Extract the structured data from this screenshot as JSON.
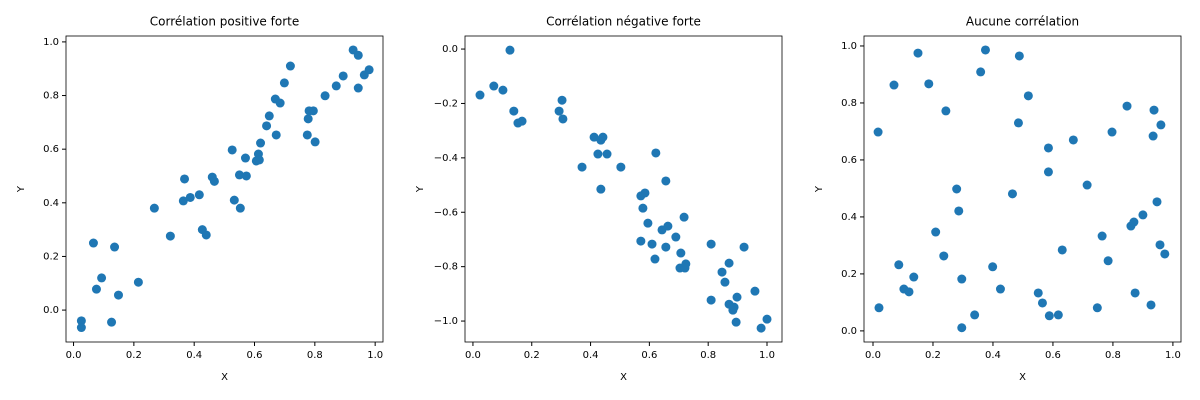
{
  "chart_data": [
    {
      "type": "scatter",
      "title": "Corrélation positive forte",
      "xlabel": "X",
      "ylabel": "Y",
      "color": "#1f77b4",
      "x": [
        0.026,
        0.026,
        0.066,
        0.076,
        0.093,
        0.126,
        0.136,
        0.149,
        0.215,
        0.268,
        0.321,
        0.364,
        0.368,
        0.387,
        0.417,
        0.427,
        0.44,
        0.46,
        0.467,
        0.526,
        0.533,
        0.55,
        0.553,
        0.57,
        0.573,
        0.606,
        0.613,
        0.616,
        0.62,
        0.64,
        0.649,
        0.669,
        0.672,
        0.685,
        0.699,
        0.719,
        0.775,
        0.778,
        0.781,
        0.795,
        0.801,
        0.834,
        0.871,
        0.894,
        0.927,
        0.944,
        0.944,
        0.964,
        0.98
      ],
      "values": [
        -0.04,
        -0.065,
        0.25,
        0.078,
        0.12,
        -0.045,
        0.235,
        0.056,
        0.104,
        0.38,
        0.276,
        0.407,
        0.489,
        0.42,
        0.43,
        0.3,
        0.28,
        0.496,
        0.48,
        0.597,
        0.41,
        0.504,
        0.38,
        0.567,
        0.5,
        0.556,
        0.582,
        0.56,
        0.623,
        0.687,
        0.724,
        0.787,
        0.653,
        0.772,
        0.847,
        0.91,
        0.653,
        0.713,
        0.743,
        0.743,
        0.627,
        0.799,
        0.836,
        0.873,
        0.97,
        0.95,
        0.828,
        0.877,
        0.896
      ],
      "xlim": [
        -0.025,
        1.026
      ],
      "ylim": [
        -0.119,
        1.022
      ],
      "xticks": [
        {
          "value": 0,
          "label": "0.0"
        },
        {
          "value": 0.2,
          "label": "0.2"
        },
        {
          "value": 0.4,
          "label": "0.4"
        },
        {
          "value": 0.6,
          "label": "0.6"
        },
        {
          "value": 0.8,
          "label": "0.8"
        },
        {
          "value": 1,
          "label": "1.0"
        }
      ],
      "yticks": [
        {
          "value": 0,
          "label": "0.0"
        },
        {
          "value": 0.2,
          "label": "0.2"
        },
        {
          "value": 0.4,
          "label": "0.4"
        },
        {
          "value": 0.6,
          "label": "0.6"
        },
        {
          "value": 0.8,
          "label": "0.8"
        },
        {
          "value": 1,
          "label": "1.0"
        }
      ]
    },
    {
      "type": "scatter",
      "title": "Corrélation négative forte",
      "xlabel": "X",
      "ylabel": "Y",
      "color": "#1f77b4",
      "x": [
        0.024,
        0.071,
        0.102,
        0.126,
        0.139,
        0.153,
        0.167,
        0.293,
        0.303,
        0.306,
        0.371,
        0.412,
        0.425,
        0.435,
        0.442,
        0.435,
        0.456,
        0.503,
        0.571,
        0.578,
        0.585,
        0.571,
        0.595,
        0.609,
        0.619,
        0.622,
        0.643,
        0.656,
        0.656,
        0.663,
        0.69,
        0.704,
        0.707,
        0.718,
        0.721,
        0.724,
        0.81,
        0.81,
        0.847,
        0.857,
        0.871,
        0.871,
        0.884,
        0.888,
        0.895,
        0.898,
        0.922,
        0.959,
        0.98,
        1.0
      ],
      "values": [
        -0.169,
        -0.136,
        -0.151,
        -0.004,
        -0.228,
        -0.272,
        -0.265,
        -0.228,
        -0.188,
        -0.257,
        -0.434,
        -0.324,
        -0.386,
        -0.335,
        -0.324,
        -0.515,
        -0.386,
        -0.434,
        -0.54,
        -0.585,
        -0.529,
        -0.706,
        -0.64,
        -0.717,
        -0.772,
        -0.382,
        -0.665,
        -0.485,
        -0.728,
        -0.651,
        -0.691,
        -0.805,
        -0.75,
        -0.618,
        -0.805,
        -0.79,
        -0.717,
        -0.923,
        -0.82,
        -0.857,
        -0.787,
        -0.938,
        -0.96,
        -0.949,
        -1.004,
        -0.912,
        -0.728,
        -0.89,
        -1.026,
        -0.993
      ],
      "xlim": [
        -0.027,
        1.051
      ],
      "ylim": [
        -1.077,
        0.048
      ],
      "xticks": [
        {
          "value": 0,
          "label": "0.0"
        },
        {
          "value": 0.2,
          "label": "0.2"
        },
        {
          "value": 0.4,
          "label": "0.4"
        },
        {
          "value": 0.6,
          "label": "0.6"
        },
        {
          "value": 0.8,
          "label": "0.8"
        },
        {
          "value": 1,
          "label": "1.0"
        }
      ],
      "yticks": [
        {
          "value": 0,
          "label": "0.0"
        },
        {
          "value": -0.2,
          "label": "−0.2"
        },
        {
          "value": -0.4,
          "label": "−0.4"
        },
        {
          "value": -0.6,
          "label": "−0.6"
        },
        {
          "value": -0.8,
          "label": "−0.8"
        },
        {
          "value": -1,
          "label": "−1.0"
        }
      ]
    },
    {
      "type": "scatter",
      "title": "Aucune corrélation",
      "xlabel": "X",
      "ylabel": "Y",
      "color": "#1f77b4",
      "x": [
        0.017,
        0.02,
        0.07,
        0.086,
        0.103,
        0.12,
        0.136,
        0.15,
        0.186,
        0.209,
        0.236,
        0.243,
        0.279,
        0.286,
        0.296,
        0.296,
        0.339,
        0.359,
        0.375,
        0.399,
        0.425,
        0.465,
        0.485,
        0.488,
        0.518,
        0.551,
        0.565,
        0.585,
        0.585,
        0.588,
        0.618,
        0.631,
        0.668,
        0.714,
        0.748,
        0.764,
        0.784,
        0.797,
        0.847,
        0.86,
        0.87,
        0.874,
        0.9,
        0.927,
        0.934,
        0.937,
        0.947,
        0.957,
        0.96,
        0.973
      ],
      "values": [
        0.698,
        0.081,
        0.863,
        0.232,
        0.147,
        0.137,
        0.189,
        0.975,
        0.867,
        0.347,
        0.263,
        0.772,
        0.498,
        0.421,
        0.182,
        0.011,
        0.056,
        0.909,
        0.986,
        0.225,
        0.147,
        0.481,
        0.73,
        0.965,
        0.825,
        0.133,
        0.098,
        0.642,
        0.558,
        0.053,
        0.056,
        0.284,
        0.67,
        0.512,
        0.081,
        0.333,
        0.246,
        0.698,
        0.789,
        0.368,
        0.382,
        0.133,
        0.407,
        0.091,
        0.684,
        0.775,
        0.453,
        0.302,
        0.723,
        0.27
      ],
      "xlim": [
        -0.03,
        1.027
      ],
      "ylim": [
        -0.039,
        1.035
      ],
      "xticks": [
        {
          "value": 0,
          "label": "0.0"
        },
        {
          "value": 0.2,
          "label": "0.2"
        },
        {
          "value": 0.4,
          "label": "0.4"
        },
        {
          "value": 0.6,
          "label": "0.6"
        },
        {
          "value": 0.8,
          "label": "0.8"
        },
        {
          "value": 1,
          "label": "1.0"
        }
      ],
      "yticks": [
        {
          "value": 0,
          "label": "0.0"
        },
        {
          "value": 0.2,
          "label": "0.2"
        },
        {
          "value": 0.4,
          "label": "0.4"
        },
        {
          "value": 0.6,
          "label": "0.6"
        },
        {
          "value": 0.8,
          "label": "0.8"
        },
        {
          "value": 1,
          "label": "1.0"
        }
      ]
    }
  ]
}
